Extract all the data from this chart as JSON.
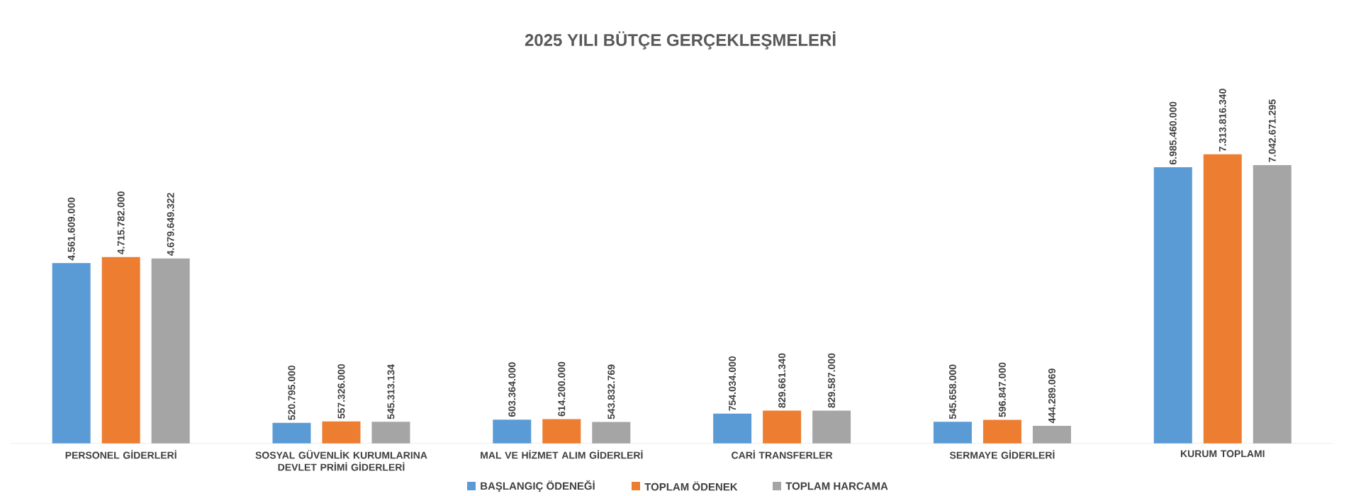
{
  "chart_data": {
    "type": "bar",
    "title": "2025 YILI BÜTÇE GERÇEKLEŞMELERİ",
    "categories": [
      "PERSONEL GİDERLERİ",
      "SOSYAL GÜVENLİK KURUMLARINA DEVLET PRİMİ GİDERLERİ",
      "MAL VE HİZMET ALIM GİDERLERİ",
      "CARİ TRANSFERLER",
      "SERMAYE GİDERLERİ",
      "KURUM TOPLAMI"
    ],
    "series": [
      {
        "name": "BAŞLANGIÇ ÖDENEĞİ",
        "color": "#5b9bd5",
        "values": [
          4561609000,
          520795000,
          603364000,
          754034000,
          545658000,
          6985460000
        ],
        "value_labels": [
          "4.561.609.000",
          "520.795.000",
          "603.364.000",
          "754.034.000",
          "545.658.000",
          "6.985.460.000"
        ]
      },
      {
        "name": "TOPLAM ÖDENEK",
        "color": "#ed7d31",
        "values": [
          4715782000,
          557326000,
          614200000,
          829661340,
          596847000,
          7313816340
        ],
        "value_labels": [
          "4.715.782.000",
          "557.326.000",
          "614.200.000",
          "829.661.340",
          "596.847.000",
          "7.313.816.340"
        ]
      },
      {
        "name": "TOPLAM HARCAMA",
        "color": "#a5a5a5",
        "values": [
          4679649322,
          545313134,
          543832769,
          829587000,
          444289069,
          7042671295
        ],
        "value_labels": [
          "4.679.649.322",
          "545.313.134",
          "543.832.769",
          "829.587.000",
          "444.289.069",
          "7.042.671.295"
        ]
      }
    ],
    "legend": "bottom"
  }
}
